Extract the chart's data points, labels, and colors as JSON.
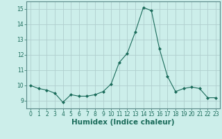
{
  "x": [
    0,
    1,
    2,
    3,
    4,
    5,
    6,
    7,
    8,
    9,
    10,
    11,
    12,
    13,
    14,
    15,
    16,
    17,
    18,
    19,
    20,
    21,
    22,
    23
  ],
  "y": [
    10.0,
    9.8,
    9.7,
    9.5,
    8.9,
    9.4,
    9.3,
    9.3,
    9.4,
    9.6,
    10.1,
    11.5,
    12.1,
    13.5,
    15.1,
    14.9,
    12.4,
    10.6,
    9.6,
    9.8,
    9.9,
    9.8,
    9.2,
    9.2
  ],
  "line_color": "#1a6b5a",
  "marker": "D",
  "marker_size": 2.0,
  "bg_color": "#cceeea",
  "grid_color": "#b0cece",
  "xlabel": "Humidex (Indice chaleur)",
  "ylim": [
    8.5,
    15.5
  ],
  "xlim": [
    -0.5,
    23.5
  ],
  "yticks": [
    9,
    10,
    11,
    12,
    13,
    14,
    15
  ],
  "xticks": [
    0,
    1,
    2,
    3,
    4,
    5,
    6,
    7,
    8,
    9,
    10,
    11,
    12,
    13,
    14,
    15,
    16,
    17,
    18,
    19,
    20,
    21,
    22,
    23
  ],
  "tick_labelsize": 5.5,
  "xlabel_fontsize": 7.5
}
